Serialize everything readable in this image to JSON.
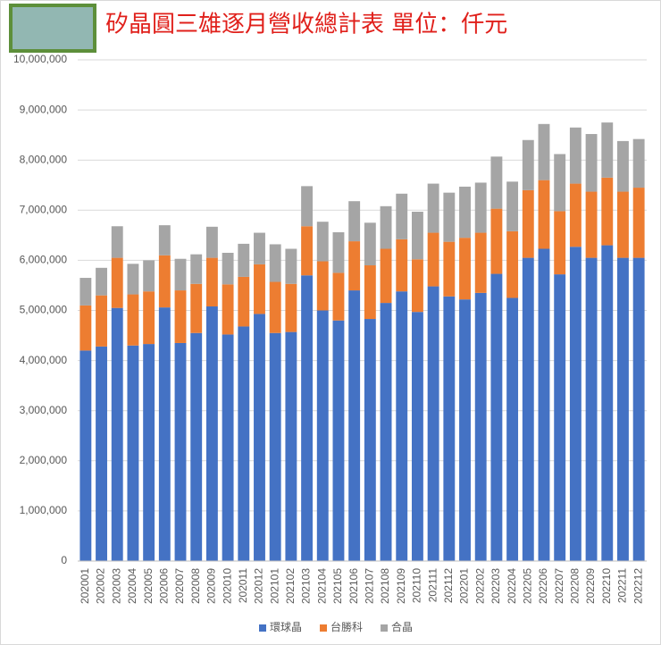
{
  "chart_data": {
    "type": "stacked_bar",
    "title": "矽晶圓三雄逐月營收總計表 單位：仟元",
    "categories": [
      "202001",
      "202002",
      "202003",
      "202004",
      "202005",
      "202006",
      "202007",
      "202008",
      "202009",
      "202010",
      "202011",
      "202012",
      "202101",
      "202102",
      "202103",
      "202104",
      "202105",
      "202106",
      "202107",
      "202108",
      "202109",
      "202110",
      "202111",
      "202112",
      "202201",
      "202202",
      "202203",
      "202204",
      "202205",
      "202206",
      "202207",
      "202208",
      "202209",
      "202210",
      "202211",
      "202212"
    ],
    "series": [
      {
        "name": "環球晶",
        "color": "#4472c4",
        "values": [
          4200000,
          4280000,
          5050000,
          4300000,
          4330000,
          5060000,
          4350000,
          4550000,
          5080000,
          4520000,
          4680000,
          4930000,
          4550000,
          4570000,
          5700000,
          5000000,
          4800000,
          5400000,
          4830000,
          5150000,
          5380000,
          4970000,
          5480000,
          5280000,
          5220000,
          5350000,
          5730000,
          5250000,
          6050000,
          6230000,
          5720000,
          6270000,
          6050000,
          6300000,
          6050000,
          6050000
        ]
      },
      {
        "name": "台勝科",
        "color": "#ed7d31",
        "values": [
          900000,
          1020000,
          1000000,
          1020000,
          1050000,
          1040000,
          1050000,
          980000,
          970000,
          1000000,
          990000,
          990000,
          1020000,
          960000,
          980000,
          980000,
          950000,
          980000,
          1070000,
          1080000,
          1040000,
          1050000,
          1070000,
          1090000,
          1230000,
          1200000,
          1300000,
          1330000,
          1350000,
          1370000,
          1260000,
          1260000,
          1320000,
          1350000,
          1320000,
          1400000
        ]
      },
      {
        "name": "合晶",
        "color": "#a5a5a5",
        "values": [
          550000,
          550000,
          630000,
          610000,
          620000,
          600000,
          630000,
          590000,
          620000,
          630000,
          660000,
          630000,
          750000,
          700000,
          800000,
          790000,
          810000,
          800000,
          850000,
          850000,
          910000,
          950000,
          980000,
          980000,
          1020000,
          1000000,
          1040000,
          990000,
          1000000,
          1120000,
          1140000,
          1120000,
          1150000,
          1100000,
          1010000,
          970000
        ]
      }
    ],
    "ylim": [
      0,
      10000000
    ],
    "yticks": [
      0,
      {
        "value": 1000000,
        "label": "1,000,000"
      },
      {
        "value": 2000000,
        "label": "2,000,000"
      },
      {
        "value": 3000000,
        "label": "3,000,000"
      },
      {
        "value": 4000000,
        "label": "4,000,000"
      },
      {
        "value": 5000000,
        "label": "5,000,000"
      },
      {
        "value": 6000000,
        "label": "6,000,000"
      },
      {
        "value": 7000000,
        "label": "7,000,000"
      },
      {
        "value": 8000000,
        "label": "8,000,000"
      },
      {
        "value": 9000000,
        "label": "9,000,000"
      },
      {
        "value": 10000000,
        "label": "10,000,000"
      }
    ],
    "grid": true,
    "legend": "bottom"
  }
}
